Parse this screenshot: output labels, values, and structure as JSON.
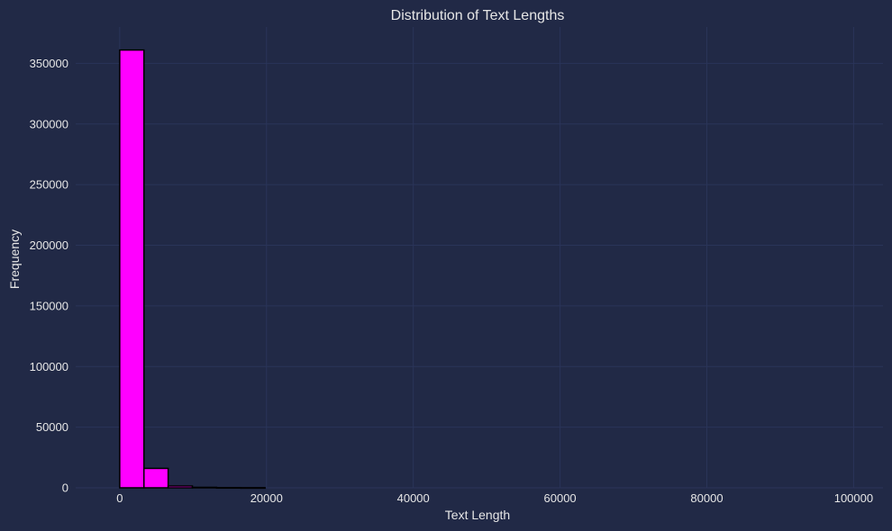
{
  "chart_data": {
    "type": "bar",
    "title": "Distribution of Text Lengths",
    "xlabel": "Text Length",
    "ylabel": "Frequency",
    "bar_color": "#ff00ff",
    "bar_edge_color": "#000000",
    "background_color": "#212946",
    "grid_color": "#2a3459",
    "text_color": "#e6e6e6",
    "grid": true,
    "xlim": [
      -6000,
      104000
    ],
    "ylim": [
      0,
      380000
    ],
    "xticks": [
      0,
      20000,
      40000,
      60000,
      80000,
      100000
    ],
    "yticks": [
      0,
      50000,
      100000,
      150000,
      200000,
      250000,
      300000,
      350000
    ],
    "bins": [
      {
        "start": 0,
        "end": 3300,
        "count": 361000
      },
      {
        "start": 3300,
        "end": 6600,
        "count": 16000
      },
      {
        "start": 6600,
        "end": 9900,
        "count": 1500
      },
      {
        "start": 9900,
        "end": 13200,
        "count": 400
      },
      {
        "start": 13200,
        "end": 16500,
        "count": 150
      },
      {
        "start": 16500,
        "end": 19800,
        "count": 60
      }
    ]
  }
}
